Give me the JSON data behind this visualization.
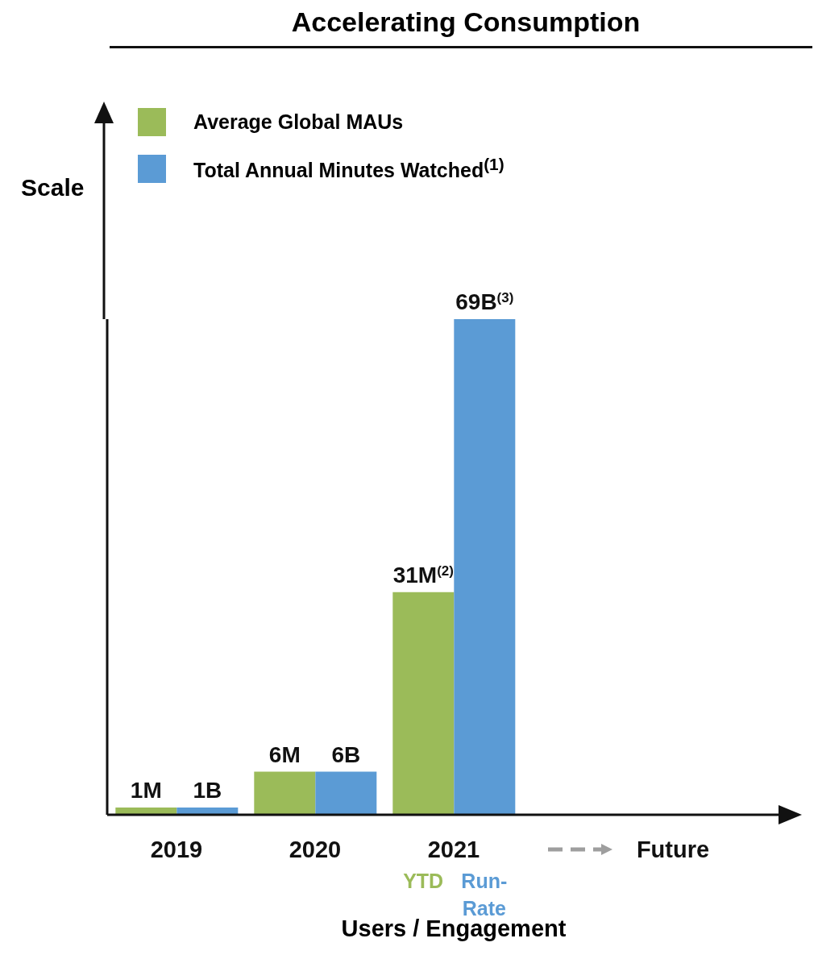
{
  "chart_data": {
    "type": "bar",
    "title": "Accelerating Consumption",
    "xlabel": "Users / Engagement",
    "ylabel": "Scale",
    "categories": [
      "2019",
      "2020",
      "2021",
      "Future"
    ],
    "series": [
      {
        "name": "Average Global MAUs",
        "color": "#9bbb59",
        "values": [
          1,
          6,
          31,
          null
        ],
        "value_labels": [
          "1M",
          "6M",
          "31M",
          null
        ]
      },
      {
        "name": "Total Annual Minutes Watched$^{(1)}$",
        "color": "#5b9bd5",
        "values": [
          1,
          6,
          69,
          null
        ],
        "value_labels": [
          "1B",
          "6B",
          "69B",
          null
        ]
      }
    ],
    "annotations": [
      "YTD",
      "Run-\nRate",
      "(2)",
      "(3)"
    ],
    "legend": "top left",
    "tick_labels": "x",
    "grid": false
  }
}
